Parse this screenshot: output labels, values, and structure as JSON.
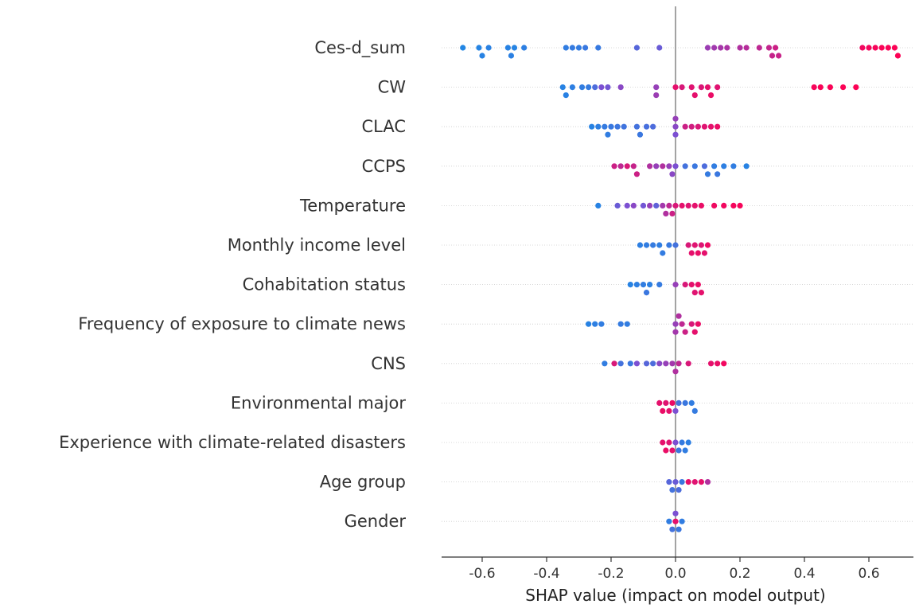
{
  "chart_data": {
    "type": "scatter",
    "subtype": "shap-beeswarm",
    "xlabel": "SHAP value (impact on model output)",
    "xlim": [
      -0.72,
      0.76
    ],
    "xticks": [
      -0.6,
      -0.4,
      -0.2,
      0.0,
      0.2,
      0.4,
      0.6
    ],
    "xtick_labels": [
      "-0.6",
      "-0.4",
      "-0.2",
      "0.0",
      "0.2",
      "0.4",
      "0.6"
    ],
    "zero_line": true,
    "row_gridlines": true,
    "colors": {
      "low": "#1E88E5",
      "high": "#FF0052",
      "zero_line": "#999999",
      "axis": "#333333"
    },
    "features": [
      {
        "name": "Ces-d_sum",
        "points": [
          {
            "x": -0.66,
            "v": 0.02
          },
          {
            "x": -0.61,
            "v": 0.04
          },
          {
            "x": -0.6,
            "v": 0.05
          },
          {
            "x": -0.58,
            "v": 0.06
          },
          {
            "x": -0.52,
            "v": 0.05
          },
          {
            "x": -0.51,
            "v": 0.07
          },
          {
            "x": -0.5,
            "v": 0.04
          },
          {
            "x": -0.47,
            "v": 0.08
          },
          {
            "x": -0.34,
            "v": 0.1
          },
          {
            "x": -0.32,
            "v": 0.12
          },
          {
            "x": -0.3,
            "v": 0.11
          },
          {
            "x": -0.28,
            "v": 0.14
          },
          {
            "x": -0.24,
            "v": 0.13
          },
          {
            "x": -0.12,
            "v": 0.3
          },
          {
            "x": -0.05,
            "v": 0.4
          },
          {
            "x": 0.1,
            "v": 0.62
          },
          {
            "x": 0.12,
            "v": 0.64
          },
          {
            "x": 0.14,
            "v": 0.66
          },
          {
            "x": 0.16,
            "v": 0.68
          },
          {
            "x": 0.2,
            "v": 0.7
          },
          {
            "x": 0.22,
            "v": 0.72
          },
          {
            "x": 0.26,
            "v": 0.75
          },
          {
            "x": 0.29,
            "v": 0.77
          },
          {
            "x": 0.3,
            "v": 0.78
          },
          {
            "x": 0.31,
            "v": 0.8
          },
          {
            "x": 0.32,
            "v": 0.79
          },
          {
            "x": 0.58,
            "v": 0.95
          },
          {
            "x": 0.6,
            "v": 0.96
          },
          {
            "x": 0.62,
            "v": 0.97
          },
          {
            "x": 0.64,
            "v": 0.98
          },
          {
            "x": 0.66,
            "v": 0.98
          },
          {
            "x": 0.68,
            "v": 0.99
          },
          {
            "x": 0.69,
            "v": 0.99
          }
        ]
      },
      {
        "name": "CW",
        "points": [
          {
            "x": -0.35,
            "v": 0.05
          },
          {
            "x": -0.34,
            "v": 0.06
          },
          {
            "x": -0.32,
            "v": 0.08
          },
          {
            "x": -0.29,
            "v": 0.1
          },
          {
            "x": -0.27,
            "v": 0.12
          },
          {
            "x": -0.25,
            "v": 0.25
          },
          {
            "x": -0.23,
            "v": 0.5
          },
          {
            "x": -0.21,
            "v": 0.45
          },
          {
            "x": -0.17,
            "v": 0.55
          },
          {
            "x": -0.06,
            "v": 0.6
          },
          {
            "x": -0.06,
            "v": 0.62
          },
          {
            "x": 0.0,
            "v": 0.9
          },
          {
            "x": 0.02,
            "v": 0.85
          },
          {
            "x": 0.05,
            "v": 0.88
          },
          {
            "x": 0.06,
            "v": 0.9
          },
          {
            "x": 0.08,
            "v": 0.86
          },
          {
            "x": 0.1,
            "v": 0.9
          },
          {
            "x": 0.11,
            "v": 0.92
          },
          {
            "x": 0.13,
            "v": 0.88
          },
          {
            "x": 0.43,
            "v": 0.97
          },
          {
            "x": 0.45,
            "v": 0.98
          },
          {
            "x": 0.48,
            "v": 0.98
          },
          {
            "x": 0.52,
            "v": 0.99
          },
          {
            "x": 0.56,
            "v": 0.99
          }
        ]
      },
      {
        "name": "CLAC",
        "points": [
          {
            "x": -0.26,
            "v": 0.05
          },
          {
            "x": -0.24,
            "v": 0.08
          },
          {
            "x": -0.22,
            "v": 0.12
          },
          {
            "x": -0.21,
            "v": 0.1
          },
          {
            "x": -0.2,
            "v": 0.14
          },
          {
            "x": -0.18,
            "v": 0.16
          },
          {
            "x": -0.16,
            "v": 0.18
          },
          {
            "x": -0.12,
            "v": 0.2
          },
          {
            "x": -0.11,
            "v": 0.15
          },
          {
            "x": -0.09,
            "v": 0.22
          },
          {
            "x": -0.07,
            "v": 0.25
          },
          {
            "x": 0.0,
            "v": 0.55
          },
          {
            "x": 0.0,
            "v": 0.5
          },
          {
            "x": 0.0,
            "v": 0.6
          },
          {
            "x": 0.03,
            "v": 0.8
          },
          {
            "x": 0.05,
            "v": 0.82
          },
          {
            "x": 0.07,
            "v": 0.85
          },
          {
            "x": 0.09,
            "v": 0.88
          },
          {
            "x": 0.11,
            "v": 0.9
          },
          {
            "x": 0.13,
            "v": 0.92
          }
        ]
      },
      {
        "name": "CCPS",
        "points": [
          {
            "x": -0.19,
            "v": 0.8
          },
          {
            "x": -0.17,
            "v": 0.75
          },
          {
            "x": -0.15,
            "v": 0.85
          },
          {
            "x": -0.13,
            "v": 0.78
          },
          {
            "x": -0.12,
            "v": 0.8
          },
          {
            "x": -0.08,
            "v": 0.7
          },
          {
            "x": -0.06,
            "v": 0.6
          },
          {
            "x": -0.04,
            "v": 0.7
          },
          {
            "x": -0.02,
            "v": 0.6
          },
          {
            "x": -0.01,
            "v": 0.55
          },
          {
            "x": 0.0,
            "v": 0.5
          },
          {
            "x": 0.03,
            "v": 0.2
          },
          {
            "x": 0.06,
            "v": 0.15
          },
          {
            "x": 0.09,
            "v": 0.25
          },
          {
            "x": 0.1,
            "v": 0.12
          },
          {
            "x": 0.12,
            "v": 0.1
          },
          {
            "x": 0.13,
            "v": 0.15
          },
          {
            "x": 0.15,
            "v": 0.08
          },
          {
            "x": 0.18,
            "v": 0.1
          },
          {
            "x": 0.22,
            "v": 0.05
          }
        ]
      },
      {
        "name": "Temperature",
        "points": [
          {
            "x": -0.24,
            "v": 0.05
          },
          {
            "x": -0.18,
            "v": 0.4
          },
          {
            "x": -0.15,
            "v": 0.5
          },
          {
            "x": -0.13,
            "v": 0.55
          },
          {
            "x": -0.1,
            "v": 0.45
          },
          {
            "x": -0.08,
            "v": 0.6
          },
          {
            "x": -0.06,
            "v": 0.35
          },
          {
            "x": -0.04,
            "v": 0.65
          },
          {
            "x": -0.03,
            "v": 0.7
          },
          {
            "x": -0.02,
            "v": 0.75
          },
          {
            "x": -0.01,
            "v": 0.8
          },
          {
            "x": 0.0,
            "v": 0.85
          },
          {
            "x": 0.02,
            "v": 0.9
          },
          {
            "x": 0.04,
            "v": 0.88
          },
          {
            "x": 0.06,
            "v": 0.9
          },
          {
            "x": 0.08,
            "v": 0.92
          },
          {
            "x": 0.12,
            "v": 0.94
          },
          {
            "x": 0.15,
            "v": 0.95
          },
          {
            "x": 0.18,
            "v": 0.96
          },
          {
            "x": 0.2,
            "v": 0.97
          }
        ]
      },
      {
        "name": "Monthly income level",
        "points": [
          {
            "x": -0.11,
            "v": 0.08
          },
          {
            "x": -0.09,
            "v": 0.1
          },
          {
            "x": -0.07,
            "v": 0.12
          },
          {
            "x": -0.05,
            "v": 0.09
          },
          {
            "x": -0.04,
            "v": 0.11
          },
          {
            "x": -0.02,
            "v": 0.13
          },
          {
            "x": 0.0,
            "v": 0.2
          },
          {
            "x": 0.04,
            "v": 0.85
          },
          {
            "x": 0.05,
            "v": 0.9
          },
          {
            "x": 0.06,
            "v": 0.88
          },
          {
            "x": 0.07,
            "v": 0.92
          },
          {
            "x": 0.08,
            "v": 0.87
          },
          {
            "x": 0.09,
            "v": 0.9
          },
          {
            "x": 0.1,
            "v": 0.93
          }
        ]
      },
      {
        "name": "Cohabitation status",
        "points": [
          {
            "x": -0.14,
            "v": 0.05
          },
          {
            "x": -0.12,
            "v": 0.08
          },
          {
            "x": -0.1,
            "v": 0.1
          },
          {
            "x": -0.09,
            "v": 0.15
          },
          {
            "x": -0.08,
            "v": 0.07
          },
          {
            "x": -0.05,
            "v": 0.12
          },
          {
            "x": 0.0,
            "v": 0.6
          },
          {
            "x": 0.03,
            "v": 0.85
          },
          {
            "x": 0.05,
            "v": 0.9
          },
          {
            "x": 0.06,
            "v": 0.88
          },
          {
            "x": 0.07,
            "v": 0.92
          },
          {
            "x": 0.08,
            "v": 0.9
          }
        ]
      },
      {
        "name": "Frequency of exposure to climate news",
        "points": [
          {
            "x": -0.27,
            "v": 0.05
          },
          {
            "x": -0.25,
            "v": 0.08
          },
          {
            "x": -0.23,
            "v": 0.1
          },
          {
            "x": -0.17,
            "v": 0.12
          },
          {
            "x": -0.15,
            "v": 0.1
          },
          {
            "x": 0.0,
            "v": 0.6
          },
          {
            "x": 0.0,
            "v": 0.65
          },
          {
            "x": 0.01,
            "v": 0.7
          },
          {
            "x": 0.02,
            "v": 0.75
          },
          {
            "x": 0.03,
            "v": 0.8
          },
          {
            "x": 0.05,
            "v": 0.85
          },
          {
            "x": 0.06,
            "v": 0.9
          },
          {
            "x": 0.07,
            "v": 0.92
          }
        ]
      },
      {
        "name": "CNS",
        "points": [
          {
            "x": -0.22,
            "v": 0.1
          },
          {
            "x": -0.19,
            "v": 0.85
          },
          {
            "x": -0.17,
            "v": 0.2
          },
          {
            "x": -0.14,
            "v": 0.15
          },
          {
            "x": -0.12,
            "v": 0.5
          },
          {
            "x": -0.09,
            "v": 0.3
          },
          {
            "x": -0.07,
            "v": 0.25
          },
          {
            "x": -0.05,
            "v": 0.55
          },
          {
            "x": -0.03,
            "v": 0.6
          },
          {
            "x": -0.01,
            "v": 0.65
          },
          {
            "x": 0.0,
            "v": 0.7
          },
          {
            "x": 0.01,
            "v": 0.75
          },
          {
            "x": 0.04,
            "v": 0.85
          },
          {
            "x": 0.11,
            "v": 0.9
          },
          {
            "x": 0.13,
            "v": 0.92
          },
          {
            "x": 0.15,
            "v": 0.95
          }
        ]
      },
      {
        "name": "Environmental major",
        "points": [
          {
            "x": -0.05,
            "v": 0.9
          },
          {
            "x": -0.04,
            "v": 0.92
          },
          {
            "x": -0.03,
            "v": 0.88
          },
          {
            "x": -0.02,
            "v": 0.9
          },
          {
            "x": -0.01,
            "v": 0.93
          },
          {
            "x": 0.0,
            "v": 0.5
          },
          {
            "x": 0.01,
            "v": 0.2
          },
          {
            "x": 0.03,
            "v": 0.15
          },
          {
            "x": 0.05,
            "v": 0.1
          },
          {
            "x": 0.06,
            "v": 0.12
          }
        ]
      },
      {
        "name": "Experience with climate-related disasters",
        "points": [
          {
            "x": -0.04,
            "v": 0.9
          },
          {
            "x": -0.03,
            "v": 0.92
          },
          {
            "x": -0.02,
            "v": 0.88
          },
          {
            "x": -0.01,
            "v": 0.9
          },
          {
            "x": 0.0,
            "v": 0.5
          },
          {
            "x": 0.01,
            "v": 0.15
          },
          {
            "x": 0.02,
            "v": 0.12
          },
          {
            "x": 0.03,
            "v": 0.1
          },
          {
            "x": 0.04,
            "v": 0.08
          }
        ]
      },
      {
        "name": "Age group",
        "points": [
          {
            "x": -0.02,
            "v": 0.3
          },
          {
            "x": -0.01,
            "v": 0.2
          },
          {
            "x": 0.0,
            "v": 0.4
          },
          {
            "x": 0.01,
            "v": 0.25
          },
          {
            "x": 0.02,
            "v": 0.15
          },
          {
            "x": 0.04,
            "v": 0.9
          },
          {
            "x": 0.06,
            "v": 0.88
          },
          {
            "x": 0.08,
            "v": 0.9
          },
          {
            "x": 0.1,
            "v": 0.7
          }
        ]
      },
      {
        "name": "Gender",
        "points": [
          {
            "x": -0.02,
            "v": 0.1
          },
          {
            "x": -0.01,
            "v": 0.2
          },
          {
            "x": 0.0,
            "v": 0.9
          },
          {
            "x": 0.0,
            "v": 0.5
          },
          {
            "x": 0.01,
            "v": 0.15
          },
          {
            "x": 0.02,
            "v": 0.1
          }
        ]
      }
    ]
  }
}
